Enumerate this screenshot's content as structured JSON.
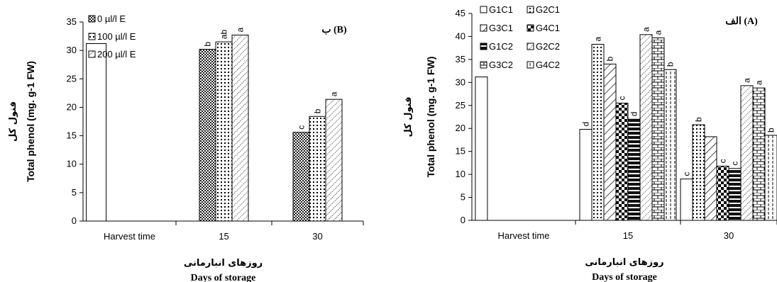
{
  "chart_data": [
    {
      "type": "bar",
      "panel_title": "ب (B)",
      "categories": [
        "Harvest time",
        "15",
        "30"
      ],
      "ylabel": "Total phenol (mg. g-1 FW)",
      "ylabel_fa": "فنول کل",
      "xlabel_fa": "روزهای انبارمانی",
      "xlabel": "Days of storage",
      "ylim": [
        0,
        35
      ],
      "yticks": [
        0,
        5,
        10,
        15,
        20,
        25,
        30,
        35
      ],
      "control": {
        "category": "Harvest time",
        "value": 31.2
      },
      "series": [
        {
          "name": "0 µl/l E",
          "values": [
            null,
            30.2,
            15.6
          ],
          "labels": [
            "",
            "b",
            "c"
          ]
        },
        {
          "name": "100 µl/l E",
          "values": [
            null,
            31.5,
            18.4
          ],
          "labels": [
            "",
            "ab",
            "b"
          ]
        },
        {
          "name": "200 µl/l E",
          "values": [
            null,
            32.7,
            21.4
          ],
          "labels": [
            "",
            "a",
            "a"
          ]
        }
      ],
      "legend": "top-left"
    },
    {
      "type": "bar",
      "panel_title": "الف (A)",
      "categories": [
        "Harvest time",
        "15",
        "30"
      ],
      "ylabel": "Total phenol (mg. g-1 FW)",
      "ylabel_fa": "فنول کل",
      "xlabel_fa": "روزهای انبارمانی",
      "xlabel": "Days of storage",
      "ylim": [
        0,
        45
      ],
      "yticks": [
        0,
        5,
        10,
        15,
        20,
        25,
        30,
        35,
        40,
        45
      ],
      "control": {
        "category": "Harvest time",
        "value": 31.2
      },
      "series": [
        {
          "name": "G1C1",
          "values": [
            null,
            19.8,
            9.0
          ],
          "labels": [
            "",
            "d",
            "c"
          ]
        },
        {
          "name": "G2C1",
          "values": [
            null,
            38.3,
            20.8
          ],
          "labels": [
            "",
            "a",
            "b"
          ]
        },
        {
          "name": "G3C1",
          "values": [
            null,
            34.0,
            18.2
          ],
          "labels": [
            "",
            "b",
            ""
          ]
        },
        {
          "name": "G4C1",
          "values": [
            null,
            25.5,
            11.8
          ],
          "labels": [
            "",
            "c",
            "c"
          ]
        },
        {
          "name": "G1C2",
          "values": [
            null,
            22.0,
            11.3
          ],
          "labels": [
            "",
            "d",
            "c"
          ]
        },
        {
          "name": "G2C2",
          "values": [
            null,
            40.4,
            29.3
          ],
          "labels": [
            "",
            "a",
            "a"
          ]
        },
        {
          "name": "G3C2",
          "values": [
            null,
            39.7,
            28.8
          ],
          "labels": [
            "",
            "a",
            "a"
          ]
        },
        {
          "name": "G4C2",
          "values": [
            null,
            32.8,
            18.5
          ],
          "labels": [
            "",
            "b",
            "b"
          ]
        }
      ],
      "legend": "top-left"
    }
  ]
}
